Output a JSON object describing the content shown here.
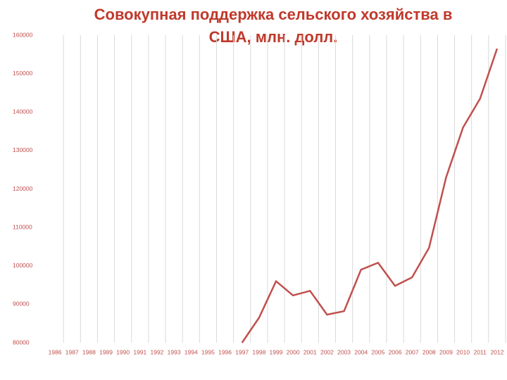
{
  "chart_data": {
    "type": "line",
    "title": "Совокупная поддержка сельского хозяйства в США, млн. долл.",
    "categories": [
      "1986",
      "1987",
      "1988",
      "1989",
      "1990",
      "1991",
      "1992",
      "1993",
      "1994",
      "1995",
      "1996",
      "1997",
      "1998",
      "1999",
      "2000",
      "2001",
      "2002",
      "2003",
      "2004",
      "2005",
      "2006",
      "2007",
      "2008",
      "2009",
      "2010",
      "2011",
      "2012"
    ],
    "series": [
      {
        "color": "#c0504d",
        "values": [
          null,
          null,
          null,
          null,
          null,
          null,
          null,
          null,
          null,
          null,
          null,
          80000,
          86500,
          96000,
          92300,
          93500,
          87300,
          88200,
          99000,
          100800,
          94800,
          97000,
          104700,
          123000,
          136000,
          143500,
          156500
        ]
      }
    ],
    "ylim": [
      80000,
      160000
    ],
    "yticks": [
      80000,
      90000,
      100000,
      110000,
      120000,
      130000,
      140000,
      150000,
      160000
    ],
    "grid": true
  }
}
